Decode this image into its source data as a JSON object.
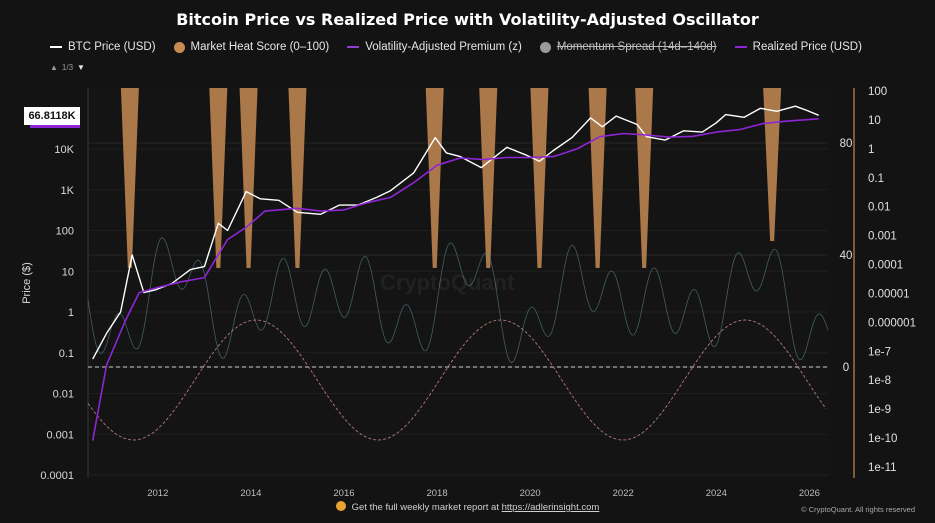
{
  "title": "Bitcoin Price vs Realized Price with Volatility-Adjusted Oscillator",
  "legend": [
    {
      "label": "BTC Price (USD)",
      "icon": "line",
      "color": "#ffffff",
      "struck": false
    },
    {
      "label": "Market Heat Score (0–100)",
      "icon": "dot",
      "color": "#c68a52",
      "struck": false
    },
    {
      "label": "Volatility-Adjusted Premium (z)",
      "icon": "line",
      "color": "#8e3fd0",
      "struck": false
    },
    {
      "label": "Momentum Spread (14d–140d)",
      "icon": "dot",
      "color": "#9a9a9a",
      "struck": true
    },
    {
      "label": "Realized Price (USD)",
      "icon": "line",
      "color": "#8e26d6",
      "struck": false
    }
  ],
  "pager": {
    "text": "1/3"
  },
  "price_tag": "66.8118K",
  "watermark": "CryptoQuant",
  "footer": {
    "text": "Get the full weekly market report at",
    "link": "https://adlerinsight.com"
  },
  "copyright": "© CryptoQuant. All rights reserved",
  "chart_data": {
    "type": "line",
    "x_ticks": [
      "2012",
      "2014",
      "2016",
      "2018",
      "2020",
      "2022",
      "2024",
      "2026"
    ],
    "y_left": {
      "label": "Price ($)",
      "scale": "log",
      "ticks": [
        "0.0001",
        "0.001",
        "0.01",
        "0.1",
        "1",
        "10",
        "100",
        "1K",
        "10K"
      ]
    },
    "y_mid": {
      "ticks": [
        "0",
        "40",
        "80"
      ],
      "range": [
        0,
        100
      ]
    },
    "y_right": {
      "scale": "log",
      "ticks": [
        "100",
        "10",
        "1",
        "0.1",
        "0.01",
        "0.001",
        "0.0001",
        "0.00001",
        "0.000001",
        "1e-7",
        "1e-8",
        "1e-9",
        "1e-10",
        "1e-11"
      ]
    },
    "zero_line": 0,
    "series": [
      {
        "name": "BTC Price (USD)",
        "color": "#ffffff",
        "x": [
          2010.6,
          2010.9,
          2011.2,
          2011.45,
          2011.7,
          2011.95,
          2012.3,
          2012.7,
          2013.0,
          2013.3,
          2013.5,
          2013.9,
          2014.2,
          2014.6,
          2015.0,
          2015.5,
          2015.9,
          2016.3,
          2016.7,
          2017.0,
          2017.5,
          2017.96,
          2018.2,
          2018.5,
          2018.95,
          2019.5,
          2019.9,
          2020.2,
          2020.5,
          2020.9,
          2021.3,
          2021.55,
          2021.85,
          2022.3,
          2022.5,
          2022.9,
          2023.3,
          2023.7,
          2024.0,
          2024.2,
          2024.6,
          2024.95,
          2025.3,
          2025.7,
          2025.95,
          2026.2
        ],
        "y": [
          0.07,
          0.3,
          1,
          25,
          3,
          3.5,
          5,
          11,
          13,
          150,
          100,
          900,
          600,
          550,
          280,
          250,
          420,
          420,
          650,
          950,
          2600,
          19000,
          8000,
          6500,
          3500,
          11000,
          7200,
          5000,
          9200,
          19000,
          58000,
          35000,
          64000,
          40000,
          20000,
          16500,
          28000,
          26000,
          44000,
          70000,
          60000,
          100000,
          84000,
          112000,
          88000,
          67000
        ]
      },
      {
        "name": "Realized Price (USD)",
        "color": "#8e26d6",
        "x": [
          2010.6,
          2010.9,
          2011.3,
          2011.6,
          2012.0,
          2012.5,
          2013.0,
          2013.5,
          2013.9,
          2014.3,
          2015.0,
          2015.5,
          2016.0,
          2016.5,
          2017.0,
          2017.5,
          2018.0,
          2018.5,
          2019.0,
          2019.5,
          2020.0,
          2020.5,
          2021.0,
          2021.5,
          2022.0,
          2022.5,
          2023.0,
          2023.5,
          2024.0,
          2024.5,
          2025.0,
          2025.5,
          2026.2
        ],
        "y": [
          0.0007,
          0.05,
          0.6,
          3,
          4,
          5.5,
          7,
          60,
          120,
          300,
          350,
          300,
          320,
          480,
          650,
          1500,
          4000,
          6000,
          5500,
          6200,
          6200,
          6500,
          10000,
          20000,
          24000,
          22000,
          19500,
          20500,
          26000,
          30000,
          42000,
          48000,
          55000
        ]
      }
    ],
    "market_heat_spikes": [
      {
        "x": 2011.4,
        "y": 100
      },
      {
        "x": 2013.3,
        "y": 100
      },
      {
        "x": 2013.95,
        "y": 100
      },
      {
        "x": 2015.0,
        "y": 100
      },
      {
        "x": 2017.95,
        "y": 100
      },
      {
        "x": 2019.1,
        "y": 100
      },
      {
        "x": 2020.2,
        "y": 100
      },
      {
        "x": 2021.45,
        "y": 100
      },
      {
        "x": 2022.45,
        "y": 100
      },
      {
        "x": 2025.2,
        "y": 85
      }
    ]
  }
}
